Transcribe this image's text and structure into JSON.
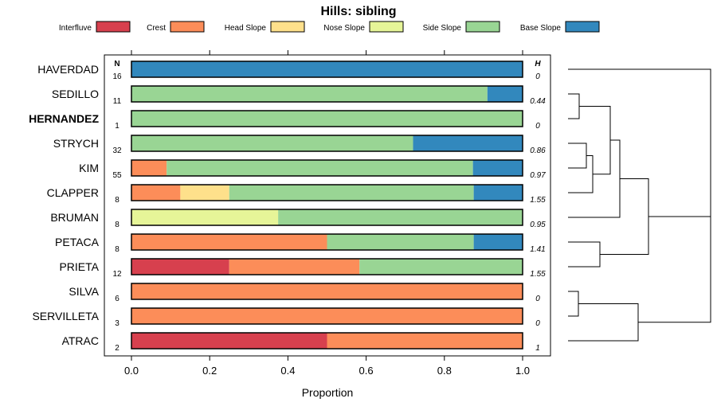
{
  "chart_data": {
    "type": "bar",
    "orientation": "horizontal",
    "stacked": true,
    "title": "Hills: sibling",
    "xlabel": "Proportion",
    "ylabel": "",
    "xlim": [
      0,
      1
    ],
    "x_ticks": [
      "0.0",
      "0.2",
      "0.4",
      "0.6",
      "0.8",
      "1.0"
    ],
    "legend_position": "top",
    "legend": [
      {
        "name": "Interfluve",
        "color": "#d7404e"
      },
      {
        "name": "Crest",
        "color": "#fc8d59"
      },
      {
        "name": "Head Slope",
        "color": "#fee08b"
      },
      {
        "name": "Nose Slope",
        "color": "#e6f598"
      },
      {
        "name": "Side Slope",
        "color": "#99d594"
      },
      {
        "name": "Base Slope",
        "color": "#3288bd"
      }
    ],
    "n_header": "N",
    "h_header": "H",
    "highlight": "HERNANDEZ",
    "categories": [
      "HAVERDAD",
      "SEDILLO",
      "HERNANDEZ",
      "STRYCH",
      "KIM",
      "CLAPPER",
      "BRUMAN",
      "PETACA",
      "PRIETA",
      "SILVA",
      "SERVILLETA",
      "ATRAC"
    ],
    "n": [
      "16",
      "11",
      "1",
      "32",
      "55",
      "8",
      "8",
      "8",
      "12",
      "6",
      "3",
      "2"
    ],
    "h": [
      "0",
      "0.44",
      "0",
      "0.86",
      "0.97",
      "1.55",
      "0.95",
      "1.41",
      "1.55",
      "0",
      "0",
      "1"
    ],
    "series": [
      {
        "name": "Interfluve",
        "values": [
          0,
          0,
          0,
          0,
          0,
          0,
          0,
          0,
          0.25,
          0,
          0,
          0.5
        ]
      },
      {
        "name": "Crest",
        "values": [
          0,
          0,
          0,
          0,
          0.09,
          0.125,
          0,
          0.5,
          0.333,
          1,
          1,
          0.5
        ]
      },
      {
        "name": "Head Slope",
        "values": [
          0,
          0,
          0,
          0,
          0,
          0.125,
          0,
          0,
          0,
          0,
          0,
          0
        ]
      },
      {
        "name": "Nose Slope",
        "values": [
          0,
          0,
          0,
          0,
          0,
          0,
          0.375,
          0,
          0,
          0,
          0,
          0
        ]
      },
      {
        "name": "Side Slope",
        "values": [
          0,
          0.91,
          1,
          0.72,
          0.783,
          0.625,
          0.625,
          0.375,
          0.417,
          0,
          0,
          0
        ]
      },
      {
        "name": "Base Slope",
        "values": [
          1,
          0.09,
          0,
          0.28,
          0.127,
          0.125,
          0,
          0.125,
          0,
          0,
          0,
          0
        ]
      }
    ]
  }
}
